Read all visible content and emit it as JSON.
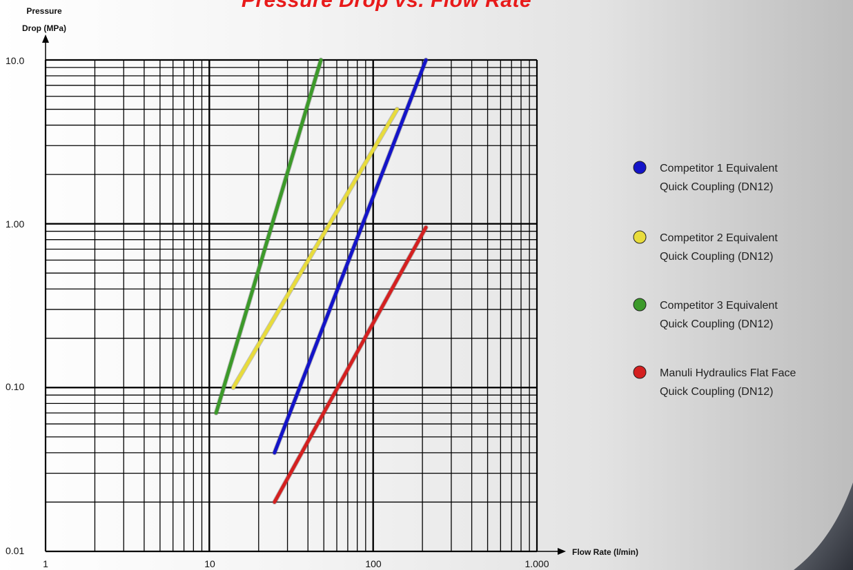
{
  "chart_data": {
    "type": "line",
    "title": "Pressure Drop vs. Flow Rate",
    "xlabel": "Flow Rate (l/min)",
    "ylabel": [
      "Pressure",
      "Drop (MPa)"
    ],
    "x_scale": "log",
    "y_scale": "log",
    "xlim": [
      1,
      1000
    ],
    "ylim": [
      0.01,
      10
    ],
    "x_ticks": [
      {
        "value": 1,
        "label": "1"
      },
      {
        "value": 10,
        "label": "10"
      },
      {
        "value": 100,
        "label": "100"
      },
      {
        "value": 1000,
        "label": "1.000"
      }
    ],
    "y_ticks": [
      {
        "value": 0.01,
        "label": "0.01"
      },
      {
        "value": 0.1,
        "label": "0.10"
      },
      {
        "value": 1,
        "label": "1.00"
      },
      {
        "value": 10,
        "label": "10.0"
      }
    ],
    "grid": true,
    "legend_position": "right",
    "series": [
      {
        "name": "Competitor 1 Equivalent Quick Coupling (DN12)",
        "legend_lines": [
          "Competitor 1 Equivalent",
          "Quick Coupling (DN12)"
        ],
        "color": "#1414c8",
        "points": [
          [
            25,
            0.04
          ],
          [
            210,
            10
          ]
        ]
      },
      {
        "name": "Competitor 2 Equivalent Quick Coupling (DN12)",
        "legend_lines": [
          "Competitor 2 Equivalent",
          "Quick Coupling (DN12)"
        ],
        "color": "#e8dc3c",
        "points": [
          [
            14,
            0.1
          ],
          [
            140,
            5
          ]
        ]
      },
      {
        "name": "Competitor 3 Equivalent Quick Coupling (DN12)",
        "legend_lines": [
          "Competitor 3 Equivalent",
          "Quick Coupling (DN12)"
        ],
        "color": "#3c9a2a",
        "points": [
          [
            11,
            0.07
          ],
          [
            48,
            10
          ]
        ]
      },
      {
        "name": "Manuli Hydraulics Flat Face Quick Coupling (DN12)",
        "legend_lines": [
          "Manuli Hydraulics Flat Face",
          "Quick Coupling (DN12)"
        ],
        "color": "#d42020",
        "points": [
          [
            25,
            0.02
          ],
          [
            210,
            0.95
          ]
        ]
      }
    ]
  }
}
